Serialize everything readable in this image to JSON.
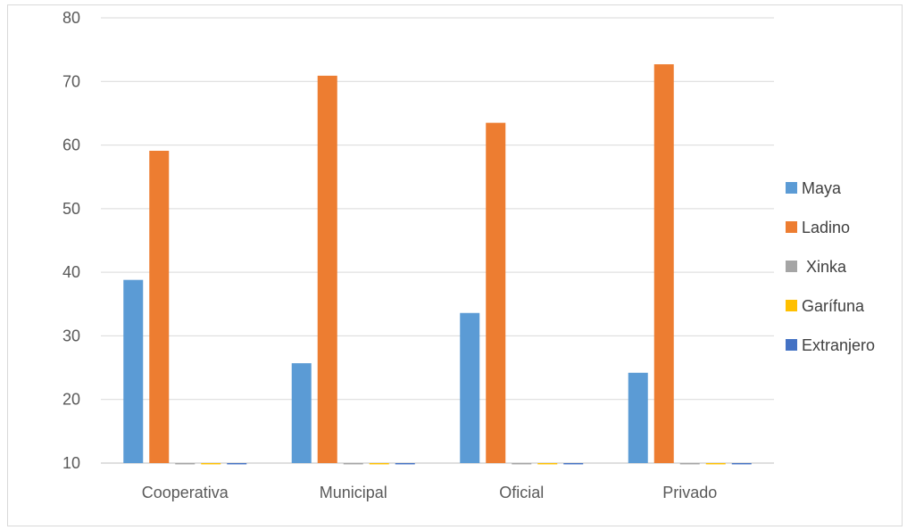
{
  "chart_data": {
    "type": "bar",
    "categories": [
      "Cooperativa",
      "Municipal",
      "Oficial",
      "Privado"
    ],
    "series": [
      {
        "name": "Maya",
        "color": "#5b9bd5",
        "values": [
          38.8,
          25.7,
          33.6,
          24.2
        ]
      },
      {
        "name": "Ladino",
        "color": "#ed7d31",
        "values": [
          59.1,
          70.9,
          63.5,
          72.7
        ]
      },
      {
        "name": " Xinka",
        "color": "#a5a5a5",
        "values": [
          9.8,
          9.8,
          9.8,
          9.8
        ]
      },
      {
        "name": "Garífuna",
        "color": "#ffc000",
        "values": [
          9.8,
          9.8,
          9.8,
          9.8
        ]
      },
      {
        "name": "Extranjero",
        "color": "#4472c4",
        "values": [
          9.8,
          9.8,
          9.8,
          9.8
        ]
      }
    ],
    "yticks": [
      "10",
      "20",
      "30",
      "40",
      "50",
      "60",
      "70",
      "80"
    ],
    "ylim": [
      10,
      80
    ],
    "grid": true,
    "legend_position": "right"
  }
}
